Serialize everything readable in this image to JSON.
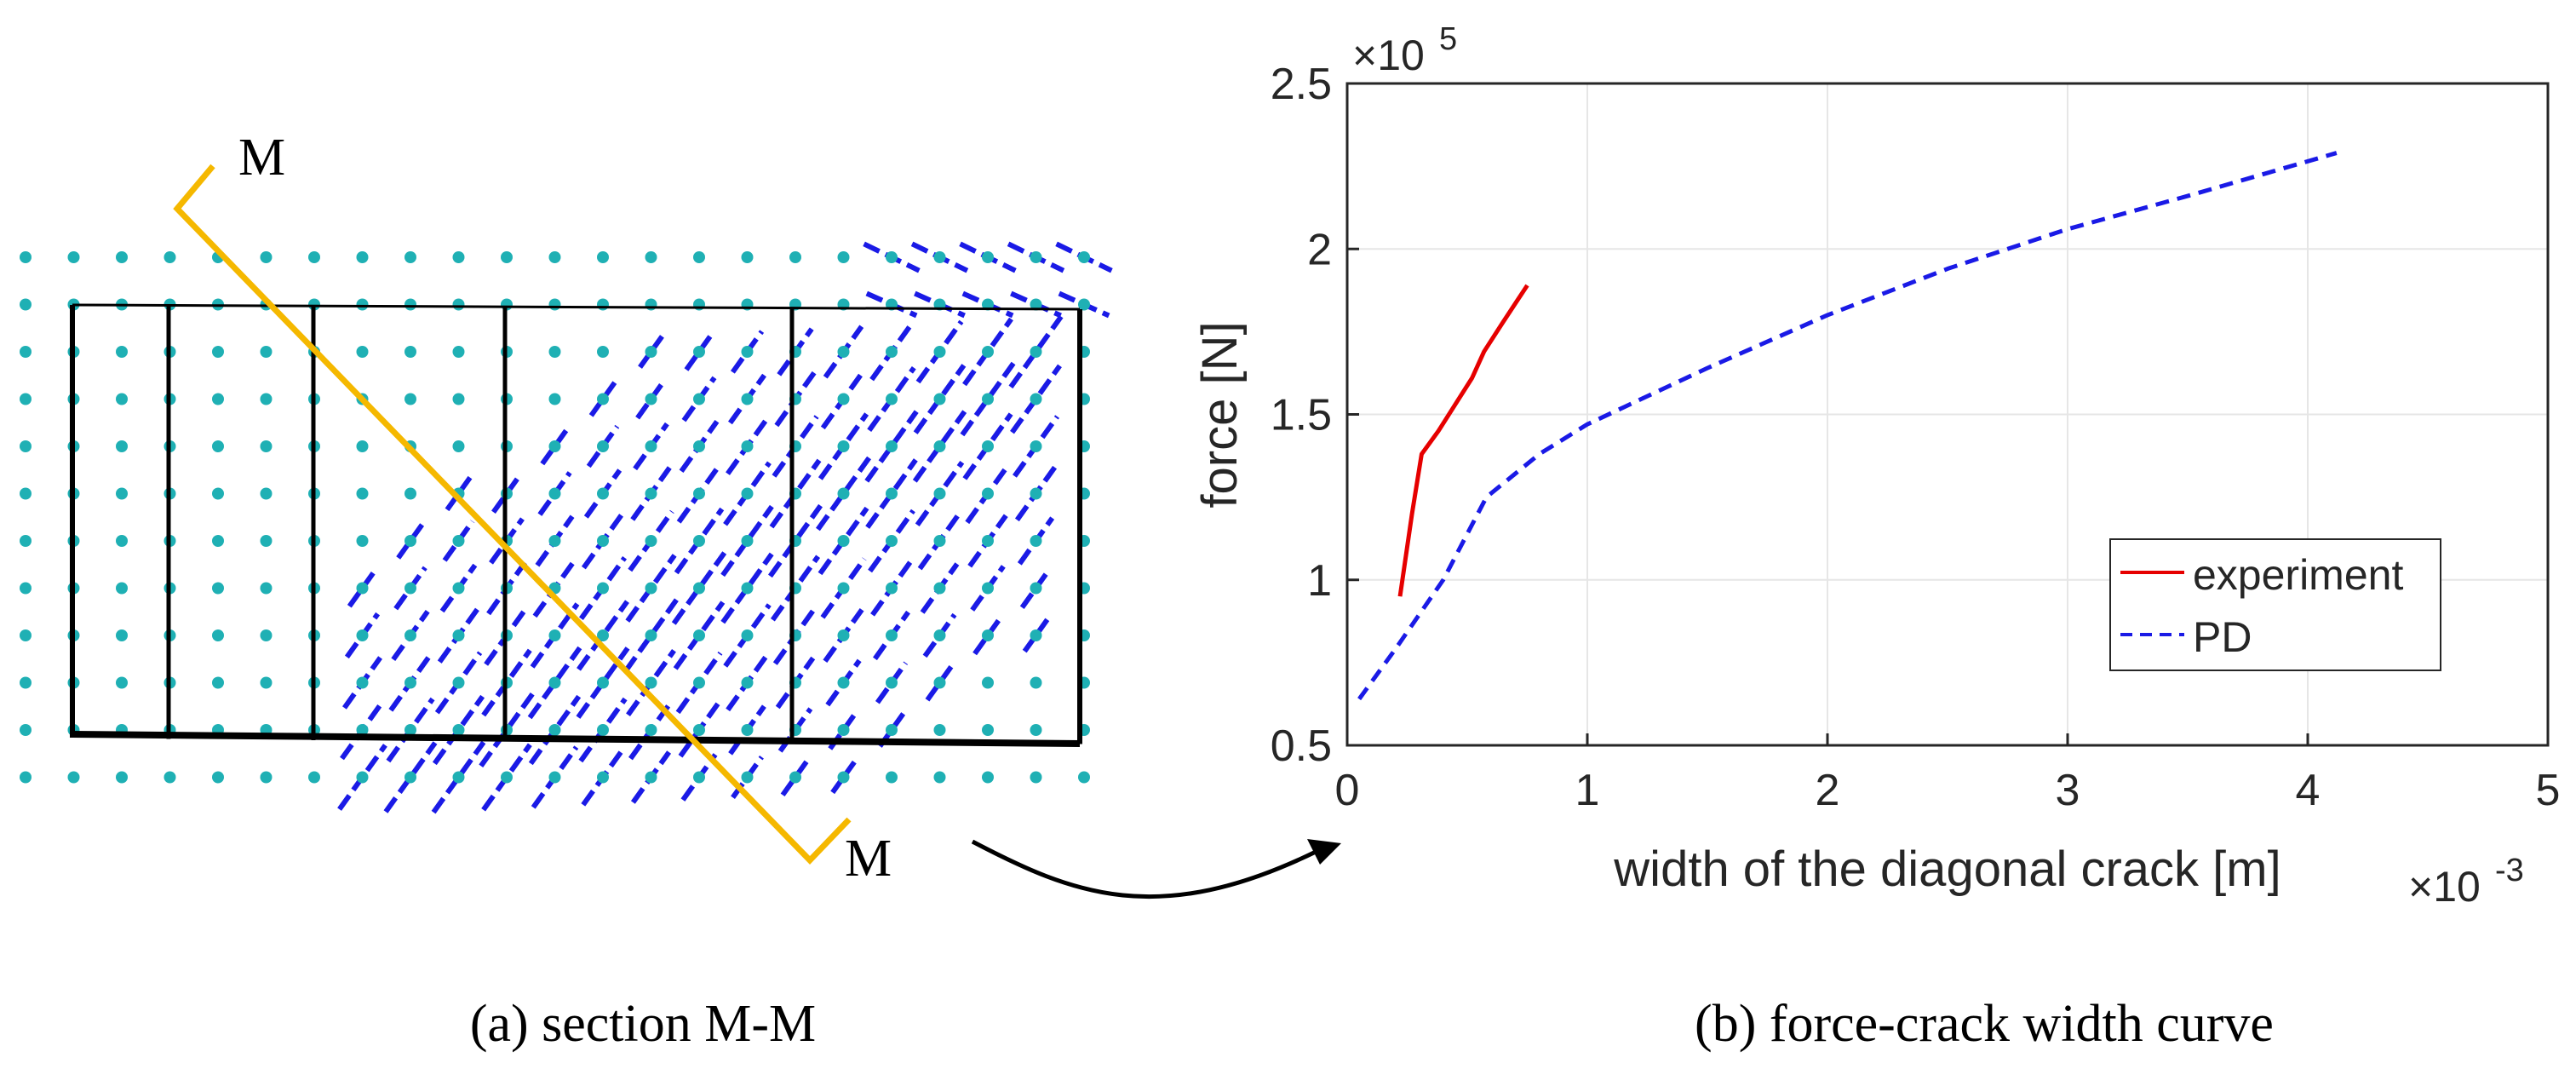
{
  "colors": {
    "node": "#1fb0b4",
    "crack_vector": "#1a1ae6",
    "frame": "#000000",
    "section_line": "#f5b800",
    "experiment": "#e60000",
    "pd": "#1a1ae6",
    "grid": "#e6e6e6",
    "axis": "#262626"
  },
  "panel_a": {
    "caption": "(a) section M-M",
    "section_label_top": "M",
    "section_label_bottom": "M"
  },
  "panel_b": {
    "caption": "(b)  force-crack width curve"
  },
  "chart_data": {
    "type": "line",
    "title": "",
    "xlabel": "width of the diagonal crack [m]",
    "ylabel": "force [N]",
    "x_exponent_label": "×10",
    "x_exponent_power": "-3",
    "y_exponent_label": "×10",
    "y_exponent_power": "5",
    "xlim": [
      0,
      5
    ],
    "ylim": [
      0.5,
      2.5
    ],
    "xticks": [
      0,
      1,
      2,
      3,
      4,
      5
    ],
    "xtick_labels": [
      "0",
      "1",
      "2",
      "3",
      "4",
      "5"
    ],
    "yticks": [
      0.5,
      1,
      1.5,
      2,
      2.5
    ],
    "ytick_labels": [
      "0.5",
      "1",
      "1.5",
      "2",
      "2.5"
    ],
    "grid": true,
    "legend_position": "right",
    "series": [
      {
        "name": "experiment",
        "style": "solid",
        "x": [
          0.22,
          0.27,
          0.31,
          0.38,
          0.45,
          0.52,
          0.57,
          0.65,
          0.75
        ],
        "y": [
          0.95,
          1.2,
          1.38,
          1.45,
          1.53,
          1.61,
          1.69,
          1.78,
          1.89
        ]
      },
      {
        "name": "PD",
        "style": "dashed",
        "x": [
          0.05,
          0.2,
          0.4,
          0.58,
          0.8,
          1.0,
          1.5,
          2.0,
          2.5,
          3.0,
          3.5,
          4.12
        ],
        "y": [
          0.64,
          0.79,
          1.0,
          1.25,
          1.38,
          1.47,
          1.64,
          1.8,
          1.94,
          2.06,
          2.16,
          2.29
        ]
      }
    ]
  }
}
